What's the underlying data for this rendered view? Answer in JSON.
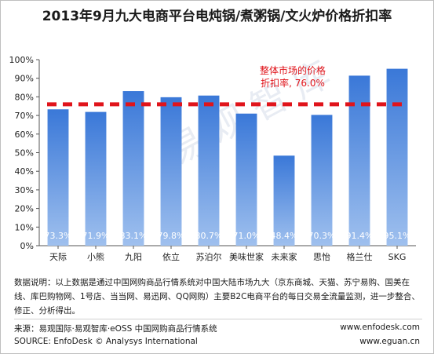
{
  "chart_data": {
    "type": "bar",
    "title": "2013年9月九大电商平台电炖锅/煮粥锅/文火炉价格折扣率",
    "categories": [
      "天际",
      "小熊",
      "九阳",
      "依立",
      "苏泊尔",
      "美味世家",
      "未来家",
      "思怡",
      "格兰仕",
      "SKG"
    ],
    "values": [
      73.3,
      71.9,
      83.1,
      79.8,
      80.7,
      71.0,
      48.4,
      70.3,
      91.4,
      95.1
    ],
    "value_labels": [
      "73.3%",
      "71.9%",
      "83.1%",
      "79.8%",
      "80.7%",
      "71.0%",
      "48.4%",
      "70.3%",
      "91.4%",
      "95.1%"
    ],
    "y_ticks": [
      "0%",
      "10%",
      "20%",
      "30%",
      "40%",
      "50%",
      "60%",
      "70%",
      "80%",
      "90%",
      "100%"
    ],
    "ylim": [
      0,
      100
    ],
    "reference_line": {
      "value": 76.0,
      "label_line1": "整体市场的价格",
      "label_line2": "折扣率, 76.0%"
    },
    "colors": {
      "bar_top": "#3a78d8",
      "bar_bottom": "#9fc0ee",
      "reference": "#e0141b"
    },
    "grid": false,
    "legend": "none"
  },
  "watermark": "易观智库",
  "note": "数据说明：以上数据是通过中国网购商品行情系统对中国大陆市场九大（京东商城、天猫、苏宁易购、国美在线、库巴购物网、1号店、当当网、易迅网、QQ网购）主要B2C电商平台的每日交易全流量监测，进一步整合、修正、分析得出。",
  "footer": {
    "source": "来源：易观国际·易观智库·eOSS 中国网购商品行情系统",
    "source_en": "SOURCE: EnfoDesk © Analysys International",
    "site1": "www.enfodesk.com",
    "site2": "www.eguan.cn"
  }
}
